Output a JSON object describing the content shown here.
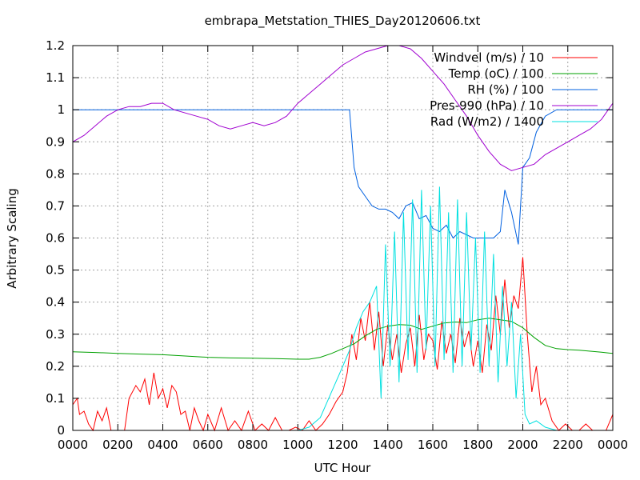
{
  "chart_data": {
    "type": "line",
    "title": "embrapa_Metstation_THIES_Day20120606.txt",
    "xlabel": "UTC Hour",
    "ylabel": "Arbitrary Scaling",
    "xlim": [
      0,
      24
    ],
    "ylim": [
      0,
      1.2
    ],
    "grid": true,
    "legend_position": "top-right",
    "x_ticks": [
      {
        "value": 0,
        "label": "0000"
      },
      {
        "value": 2,
        "label": "0200"
      },
      {
        "value": 4,
        "label": "0400"
      },
      {
        "value": 6,
        "label": "0600"
      },
      {
        "value": 8,
        "label": "0800"
      },
      {
        "value": 10,
        "label": "1000"
      },
      {
        "value": 12,
        "label": "1200"
      },
      {
        "value": 14,
        "label": "1400"
      },
      {
        "value": 16,
        "label": "1600"
      },
      {
        "value": 18,
        "label": "1800"
      },
      {
        "value": 20,
        "label": "2000"
      },
      {
        "value": 22,
        "label": "2200"
      },
      {
        "value": 24,
        "label": "0000"
      }
    ],
    "y_ticks": [
      {
        "value": 0,
        "label": "0"
      },
      {
        "value": 0.1,
        "label": "0.1"
      },
      {
        "value": 0.2,
        "label": "0.2"
      },
      {
        "value": 0.3,
        "label": "0.3"
      },
      {
        "value": 0.4,
        "label": "0.4"
      },
      {
        "value": 0.5,
        "label": "0.5"
      },
      {
        "value": 0.6,
        "label": "0.6"
      },
      {
        "value": 0.7,
        "label": "0.7"
      },
      {
        "value": 0.8,
        "label": "0.8"
      },
      {
        "value": 0.9,
        "label": "0.9"
      },
      {
        "value": 1.0,
        "label": "1"
      },
      {
        "value": 1.1,
        "label": "1.1"
      },
      {
        "value": 1.2,
        "label": "1.2"
      }
    ],
    "series": [
      {
        "name": "Windvel (m/s) / 10",
        "color": "#ff0000",
        "x": [
          0,
          0.2,
          0.3,
          0.5,
          0.7,
          0.9,
          1.1,
          1.3,
          1.5,
          1.7,
          2.0,
          2.3,
          2.5,
          2.8,
          3.0,
          3.2,
          3.4,
          3.6,
          3.8,
          4.0,
          4.2,
          4.4,
          4.6,
          4.8,
          5.0,
          5.2,
          5.4,
          5.6,
          5.8,
          6.0,
          6.3,
          6.6,
          6.9,
          7.2,
          7.5,
          7.8,
          8.1,
          8.4,
          8.7,
          9.0,
          9.3,
          9.6,
          9.9,
          10.2,
          10.5,
          10.8,
          11.1,
          11.4,
          11.7,
          12.0,
          12.2,
          12.4,
          12.6,
          12.8,
          13.0,
          13.2,
          13.4,
          13.6,
          13.8,
          14.0,
          14.2,
          14.4,
          14.6,
          14.8,
          15.0,
          15.2,
          15.4,
          15.6,
          15.8,
          16.0,
          16.2,
          16.4,
          16.6,
          16.8,
          17.0,
          17.2,
          17.4,
          17.6,
          17.8,
          18.0,
          18.2,
          18.4,
          18.6,
          18.8,
          19.0,
          19.2,
          19.4,
          19.6,
          19.8,
          20.0,
          20.2,
          20.4,
          20.6,
          20.8,
          21.0,
          21.3,
          21.6,
          21.9,
          22.2,
          22.5,
          22.8,
          23.1,
          23.4,
          23.7,
          24.0
        ],
        "y": [
          0.08,
          0.1,
          0.05,
          0.06,
          0.02,
          0.0,
          0.06,
          0.03,
          0.07,
          0.0,
          0.0,
          0.0,
          0.1,
          0.14,
          0.12,
          0.16,
          0.08,
          0.18,
          0.1,
          0.13,
          0.07,
          0.14,
          0.12,
          0.05,
          0.06,
          0.0,
          0.07,
          0.03,
          0.0,
          0.05,
          0.0,
          0.07,
          0.0,
          0.03,
          0.0,
          0.06,
          0.0,
          0.02,
          0.0,
          0.04,
          0.0,
          0.0,
          0.01,
          0.0,
          0.03,
          0.0,
          0.02,
          0.05,
          0.09,
          0.12,
          0.18,
          0.3,
          0.22,
          0.35,
          0.28,
          0.4,
          0.25,
          0.37,
          0.2,
          0.33,
          0.22,
          0.3,
          0.18,
          0.27,
          0.32,
          0.2,
          0.36,
          0.22,
          0.3,
          0.28,
          0.19,
          0.34,
          0.24,
          0.3,
          0.21,
          0.35,
          0.26,
          0.31,
          0.2,
          0.28,
          0.18,
          0.33,
          0.25,
          0.42,
          0.3,
          0.47,
          0.32,
          0.42,
          0.38,
          0.54,
          0.3,
          0.12,
          0.2,
          0.08,
          0.1,
          0.03,
          0.0,
          0.02,
          0.0,
          0.0,
          0.02,
          0.0,
          0.0,
          0.0,
          0.05
        ]
      },
      {
        "name": "Temp (oC) / 100",
        "color": "#00a000",
        "x": [
          0,
          1,
          2,
          3,
          4,
          5,
          6,
          7,
          8,
          9,
          10,
          10.5,
          11,
          11.5,
          12,
          12.5,
          13,
          13.5,
          14,
          14.5,
          15,
          15.5,
          16,
          16.5,
          17,
          17.5,
          18,
          18.5,
          19,
          19.5,
          20,
          20.5,
          21,
          21.5,
          22,
          22.5,
          23,
          23.5,
          24
        ],
        "y": [
          0.245,
          0.243,
          0.24,
          0.238,
          0.236,
          0.232,
          0.228,
          0.226,
          0.225,
          0.224,
          0.222,
          0.222,
          0.228,
          0.24,
          0.255,
          0.27,
          0.295,
          0.315,
          0.325,
          0.33,
          0.328,
          0.315,
          0.325,
          0.335,
          0.338,
          0.336,
          0.345,
          0.35,
          0.345,
          0.34,
          0.32,
          0.29,
          0.265,
          0.255,
          0.252,
          0.25,
          0.247,
          0.244,
          0.24
        ]
      },
      {
        "name": "RH (%) / 100",
        "color": "#0060e0",
        "x": [
          0,
          2,
          4,
          6,
          8,
          10,
          12,
          12.3,
          12.5,
          12.7,
          13,
          13.3,
          13.6,
          13.9,
          14.2,
          14.5,
          14.8,
          15.1,
          15.4,
          15.7,
          16,
          16.3,
          16.6,
          16.9,
          17.2,
          17.5,
          17.8,
          18.1,
          18.4,
          18.7,
          19.0,
          19.2,
          19.5,
          19.8,
          20.0,
          20.3,
          20.6,
          21,
          21.5,
          22,
          23,
          24
        ],
        "y": [
          1.0,
          1.0,
          1.0,
          1.0,
          1.0,
          1.0,
          1.0,
          1.0,
          0.82,
          0.76,
          0.73,
          0.7,
          0.69,
          0.69,
          0.68,
          0.66,
          0.7,
          0.71,
          0.66,
          0.67,
          0.63,
          0.62,
          0.64,
          0.6,
          0.62,
          0.61,
          0.6,
          0.6,
          0.6,
          0.6,
          0.62,
          0.75,
          0.68,
          0.58,
          0.82,
          0.85,
          0.93,
          0.98,
          1.0,
          1.0,
          1.0,
          1.0
        ]
      },
      {
        "name": "Pres-990 (hPa) / 10",
        "color": "#a000d0",
        "x": [
          0,
          0.5,
          1,
          1.5,
          2,
          2.5,
          3,
          3.5,
          4,
          4.5,
          5,
          5.5,
          6,
          6.5,
          7,
          7.5,
          8,
          8.5,
          9,
          9.5,
          10,
          10.5,
          11,
          11.5,
          12,
          12.5,
          13,
          13.5,
          14,
          14.5,
          15,
          15.5,
          16,
          16.5,
          17,
          17.5,
          18,
          18.5,
          19,
          19.5,
          20,
          20.5,
          21,
          21.5,
          22,
          22.5,
          23,
          23.5,
          24
        ],
        "y": [
          0.9,
          0.92,
          0.95,
          0.98,
          1.0,
          1.01,
          1.01,
          1.02,
          1.02,
          1.0,
          0.99,
          0.98,
          0.97,
          0.95,
          0.94,
          0.95,
          0.96,
          0.95,
          0.96,
          0.98,
          1.02,
          1.05,
          1.08,
          1.11,
          1.14,
          1.16,
          1.18,
          1.19,
          1.2,
          1.2,
          1.19,
          1.16,
          1.12,
          1.08,
          1.03,
          0.98,
          0.92,
          0.87,
          0.83,
          0.81,
          0.82,
          0.83,
          0.86,
          0.88,
          0.9,
          0.92,
          0.94,
          0.97,
          1.02
        ]
      },
      {
        "name": "Rad (W/m2) / 1400",
        "color": "#00e0e0",
        "x": [
          0,
          4,
          8,
          10,
          10.5,
          11,
          11.5,
          12,
          12.3,
          12.6,
          12.9,
          13.2,
          13.5,
          13.7,
          13.9,
          14.1,
          14.3,
          14.5,
          14.7,
          14.9,
          15.1,
          15.3,
          15.5,
          15.7,
          15.9,
          16.1,
          16.3,
          16.5,
          16.7,
          16.9,
          17.1,
          17.3,
          17.5,
          17.7,
          17.9,
          18.1,
          18.3,
          18.5,
          18.7,
          18.9,
          19.1,
          19.3,
          19.5,
          19.7,
          19.9,
          20.1,
          20.3,
          20.6,
          21,
          21.5,
          22,
          24
        ],
        "y": [
          0,
          0,
          0,
          0,
          0.01,
          0.04,
          0.12,
          0.2,
          0.25,
          0.32,
          0.37,
          0.4,
          0.45,
          0.1,
          0.58,
          0.2,
          0.62,
          0.15,
          0.68,
          0.22,
          0.72,
          0.18,
          0.75,
          0.25,
          0.7,
          0.2,
          0.76,
          0.22,
          0.68,
          0.18,
          0.72,
          0.2,
          0.68,
          0.25,
          0.6,
          0.18,
          0.62,
          0.2,
          0.55,
          0.15,
          0.45,
          0.2,
          0.4,
          0.1,
          0.3,
          0.05,
          0.02,
          0.03,
          0.01,
          0,
          0,
          0
        ]
      }
    ]
  }
}
